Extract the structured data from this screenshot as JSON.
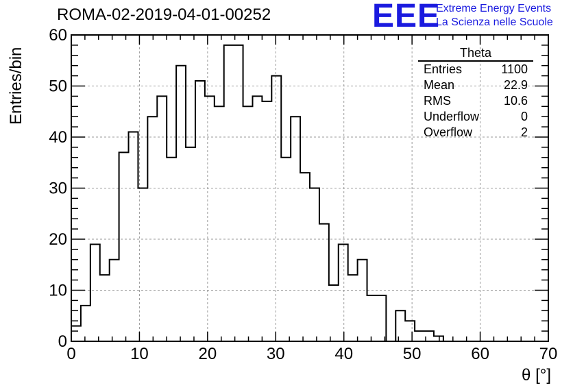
{
  "header": {
    "title": "ROMA-02-2019-04-01-00252",
    "logo_text": "EEE",
    "logo_line1": "Extreme Energy Events",
    "logo_line2": "La Scienza nelle Scuole",
    "logo_color": "#1a1adf"
  },
  "stats_box": {
    "title": "Theta",
    "rows": [
      {
        "label": "Entries",
        "value": "1100"
      },
      {
        "label": "Mean",
        "value": "22.9"
      },
      {
        "label": "RMS",
        "value": "10.6"
      },
      {
        "label": "Underflow",
        "value": "0"
      },
      {
        "label": "Overflow",
        "value": "2"
      }
    ]
  },
  "chart_data": {
    "type": "bar",
    "style": "step-histogram",
    "title": "ROMA-02-2019-04-01-00252",
    "xlabel": "θ [°]",
    "ylabel": "Entries/bin",
    "xlim": [
      0,
      70
    ],
    "ylim": [
      0,
      60
    ],
    "bin_width": 1.4,
    "xticks": [
      0,
      10,
      20,
      30,
      40,
      50,
      60,
      70
    ],
    "yticks": [
      0,
      10,
      20,
      30,
      40,
      50,
      60
    ],
    "grid": true,
    "legend": "none",
    "line_color": "#000000",
    "values": [
      3,
      7,
      19,
      13,
      16,
      37,
      41,
      30,
      44,
      48,
      36,
      54,
      38,
      51,
      48,
      46,
      58,
      58,
      46,
      48,
      47,
      52,
      36,
      44,
      33,
      30,
      23,
      11,
      19,
      13,
      16,
      9,
      9,
      0,
      6,
      4,
      2,
      2,
      1,
      0,
      0,
      0,
      0,
      0,
      0,
      0,
      0,
      0,
      0,
      0
    ]
  }
}
